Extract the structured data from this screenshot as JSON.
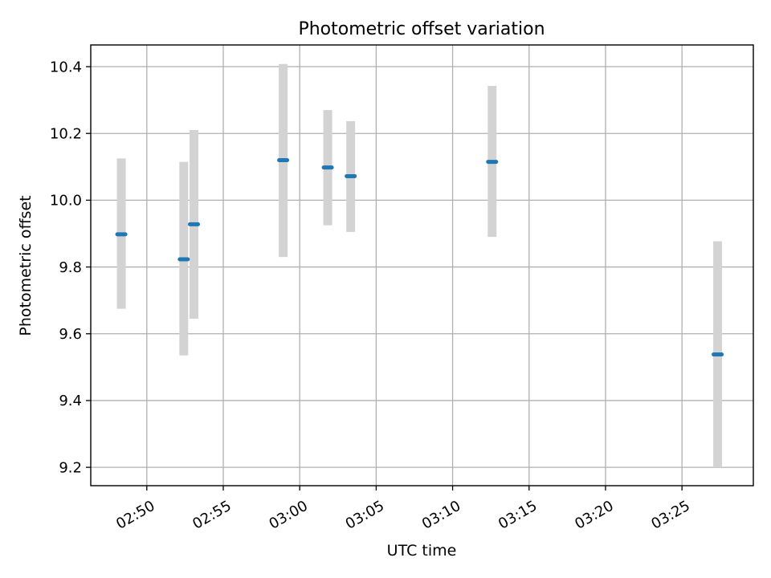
{
  "chart_data": {
    "type": "scatter",
    "title": "Photometric offset variation",
    "xlabel": "UTC time",
    "ylabel": "Photometric offset",
    "xlim": [
      "02:46:20",
      "03:29:40"
    ],
    "ylim": [
      9.145,
      10.465
    ],
    "x_ticks": [
      "02:50",
      "02:55",
      "03:00",
      "03:05",
      "03:10",
      "03:15",
      "03:20",
      "03:25"
    ],
    "y_ticks": [
      "9.2",
      "9.4",
      "9.6",
      "9.8",
      "10.0",
      "10.2",
      "10.4"
    ],
    "grid": true,
    "x_tick_rotation_deg": 30,
    "series": [
      {
        "marker_color": "#1f77b4",
        "errorbar_color": "#d3d3d3",
        "points": [
          {
            "time": "02:48:20",
            "value": 9.898,
            "low": 9.675,
            "high": 10.125
          },
          {
            "time": "02:52:25",
            "value": 9.823,
            "low": 9.535,
            "high": 10.115
          },
          {
            "time": "02:53:05",
            "value": 9.928,
            "low": 9.645,
            "high": 10.21
          },
          {
            "time": "02:58:55",
            "value": 10.12,
            "low": 9.83,
            "high": 10.408
          },
          {
            "time": "03:01:50",
            "value": 10.098,
            "low": 9.925,
            "high": 10.27
          },
          {
            "time": "03:03:20",
            "value": 10.072,
            "low": 9.905,
            "high": 10.237
          },
          {
            "time": "03:12:35",
            "value": 10.115,
            "low": 9.89,
            "high": 10.342
          },
          {
            "time": "03:27:20",
            "value": 9.538,
            "low": 9.2,
            "high": 9.877
          }
        ]
      }
    ]
  }
}
